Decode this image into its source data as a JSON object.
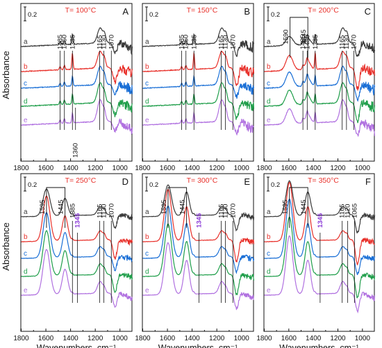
{
  "figure": {
    "ylabel": "Absorbance",
    "xlabel": "Wavenumbers, cm⁻¹",
    "x_ticks": [
      "1800",
      "1600",
      "1400",
      "1200",
      "1000"
    ],
    "scale_bar": "0.2",
    "curve_labels": [
      "a",
      "b",
      "c",
      "d",
      "e"
    ]
  },
  "colors": {
    "a": "#3a3a3a",
    "b": "#e8302a",
    "c": "#1a6fd6",
    "d": "#1f9e4a",
    "e": "#b070e0",
    "title": "#e8302a",
    "highlight": "#8a3ad6"
  },
  "chart_data": [
    {
      "type": "line",
      "panel": "A",
      "title": "T= 100°C",
      "xlabel": "",
      "ylabel": "Absorbance",
      "xlim": [
        1800,
        900
      ],
      "series": [
        {
          "name": "a"
        },
        {
          "name": "b"
        },
        {
          "name": "c"
        },
        {
          "name": "d"
        },
        {
          "name": "e"
        }
      ],
      "peaks": [
        1485,
        1450,
        1385,
        1165,
        1130,
        1070
      ],
      "annotations": [
        {
          "label": "1360",
          "x": 1360
        }
      ],
      "bracket": null
    },
    {
      "type": "line",
      "panel": "B",
      "title": "T= 150°C",
      "xlabel": "",
      "ylabel": "",
      "xlim": [
        1800,
        900
      ],
      "series": [
        {
          "name": "a"
        },
        {
          "name": "b"
        },
        {
          "name": "c"
        },
        {
          "name": "d"
        },
        {
          "name": "e"
        }
      ],
      "peaks": [
        1485,
        1450,
        1385,
        1165,
        1130,
        1070
      ],
      "annotations": [],
      "bracket": null
    },
    {
      "type": "line",
      "panel": "C",
      "title": "T= 200°C",
      "xlabel": "",
      "ylabel": "",
      "xlim": [
        1800,
        900
      ],
      "series": [
        {
          "name": "a"
        },
        {
          "name": "b"
        },
        {
          "name": "c"
        },
        {
          "name": "d"
        },
        {
          "name": "e"
        }
      ],
      "peaks": [
        1485,
        1450,
        1385,
        1165,
        1130,
        1070
      ],
      "annotations": [],
      "bracket": [
        "1590",
        "1445"
      ]
    },
    {
      "type": "line",
      "panel": "D",
      "title": "T= 250°C",
      "xlabel": "Wavenumbers, cm⁻¹",
      "ylabel": "Absorbance",
      "xlim": [
        1800,
        900
      ],
      "series": [
        {
          "name": "a"
        },
        {
          "name": "b"
        },
        {
          "name": "c"
        },
        {
          "name": "d"
        },
        {
          "name": "e"
        }
      ],
      "peaks": [
        1385,
        1165,
        1130,
        1070
      ],
      "annotations": [
        {
          "label": "1345",
          "x": 1345,
          "highlight": true
        }
      ],
      "bracket": [
        "1595",
        "1445"
      ]
    },
    {
      "type": "line",
      "panel": "E",
      "title": "T= 300°C",
      "xlabel": "Wavenumbers, cm⁻¹",
      "ylabel": "",
      "xlim": [
        1800,
        900
      ],
      "series": [
        {
          "name": "a"
        },
        {
          "name": "b"
        },
        {
          "name": "c"
        },
        {
          "name": "d"
        },
        {
          "name": "e"
        }
      ],
      "peaks": [
        1165,
        1130,
        1070
      ],
      "annotations": [
        {
          "label": "1345",
          "x": 1345,
          "highlight": true
        }
      ],
      "bracket": [
        "1595",
        "1445"
      ]
    },
    {
      "type": "line",
      "panel": "F",
      "title": "T= 350°C",
      "xlabel": "Wavenumbers, cm⁻¹",
      "ylabel": "",
      "xlim": [
        1800,
        900
      ],
      "series": [
        {
          "name": "a"
        },
        {
          "name": "b"
        },
        {
          "name": "c"
        },
        {
          "name": "d"
        },
        {
          "name": "e"
        }
      ],
      "peaks": [
        1165,
        1120,
        1065
      ],
      "annotations": [
        {
          "label": "1345",
          "x": 1345,
          "highlight": true
        }
      ],
      "bracket": [
        "1595",
        "1445"
      ]
    }
  ]
}
